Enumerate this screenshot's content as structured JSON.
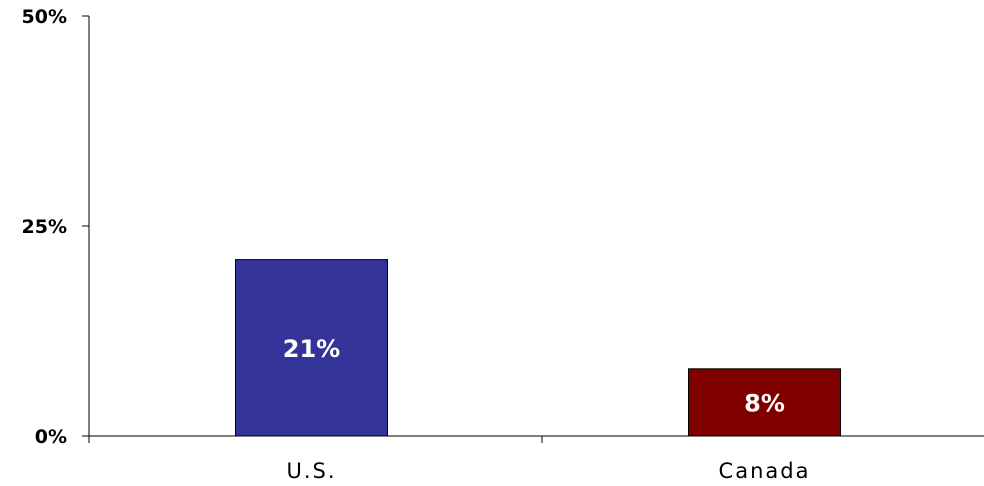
{
  "chart_data": {
    "type": "bar",
    "categories": [
      "U.S.",
      "Canada"
    ],
    "values": [
      21,
      8
    ],
    "data_labels": [
      "21%",
      "8%"
    ],
    "bar_colors": [
      "#333399",
      "#800000"
    ],
    "ylim": [
      0,
      50
    ],
    "yticks": [
      0,
      25,
      50
    ],
    "ytick_labels": [
      "0%",
      "25%",
      "50%"
    ],
    "title": "",
    "xlabel": "",
    "ylabel": "",
    "grid": false,
    "legend": "none"
  }
}
